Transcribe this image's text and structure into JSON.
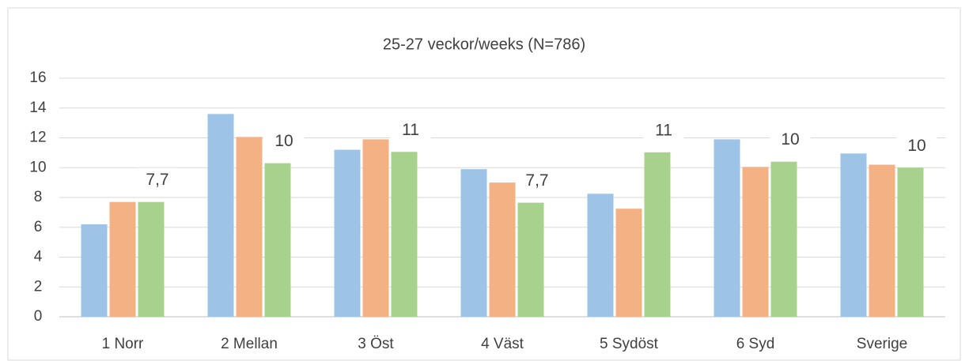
{
  "chart_data": {
    "type": "bar",
    "title": "25-27 veckor/weeks (N=786)",
    "categories": [
      "1 Norr",
      "2 Mellan",
      "3 Öst",
      "4 Väst",
      "5 Sydöst",
      "6 Syd",
      "Sverige"
    ],
    "series": [
      {
        "color": "#9dc3e6",
        "values": [
          6.2,
          13.6,
          11.2,
          9.9,
          8.25,
          11.9,
          10.95
        ]
      },
      {
        "color": "#f4b183",
        "values": [
          7.7,
          12.06,
          11.9,
          9.0,
          7.25,
          10.05,
          10.2
        ]
      },
      {
        "color": "#a9d18e",
        "values": [
          7.7,
          10.3,
          11.06,
          7.65,
          11.03,
          10.4,
          10.0
        ],
        "value_labels": [
          "7,7",
          "10",
          "11",
          "7,7",
          "11",
          "10",
          "10"
        ]
      }
    ],
    "ylim": [
      0,
      16
    ],
    "yticks": [
      0,
      2,
      4,
      6,
      8,
      10,
      12,
      14,
      16
    ],
    "grid": true
  }
}
